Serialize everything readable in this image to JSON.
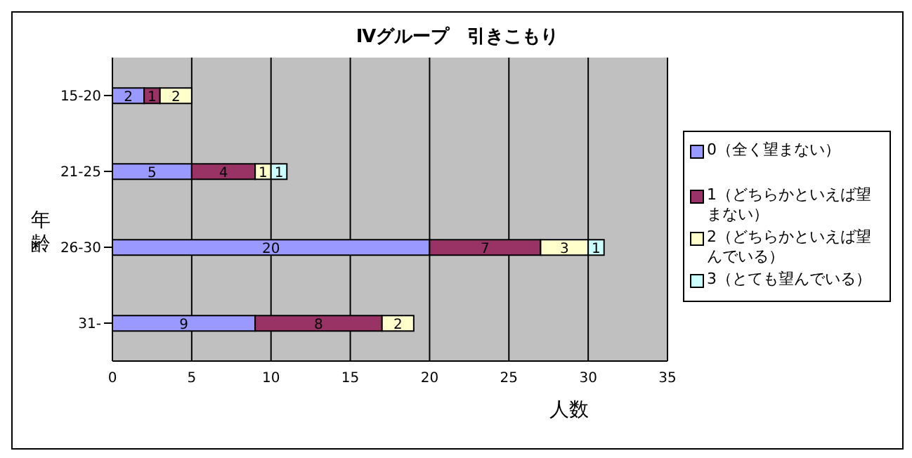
{
  "chart_data": {
    "type": "bar",
    "orientation": "horizontal",
    "stacked": true,
    "title": "Ⅳグループ　引きこもり",
    "xlabel": "人数",
    "ylabel": "年齢",
    "categories": [
      "15-20",
      "21-25",
      "26-30",
      "31-"
    ],
    "series": [
      {
        "name": "0（全く望まない）",
        "color": "#9999ff",
        "values": [
          2,
          5,
          20,
          9
        ]
      },
      {
        "name": "1（どちらかといえば望まない）",
        "color": "#993366",
        "values": [
          1,
          4,
          7,
          8
        ]
      },
      {
        "name": "2（どちらかといえば望んでいる）",
        "color": "#ffffcc",
        "values": [
          2,
          1,
          3,
          2
        ]
      },
      {
        "name": "3（とても望んでいる）",
        "color": "#ccffff",
        "values": [
          null,
          1,
          1,
          null
        ]
      }
    ],
    "xlim": [
      0,
      35
    ],
    "xticks": [
      0,
      5,
      10,
      15,
      20,
      25,
      30,
      35
    ],
    "grid": "x",
    "legend": "right",
    "data_labels": true
  }
}
